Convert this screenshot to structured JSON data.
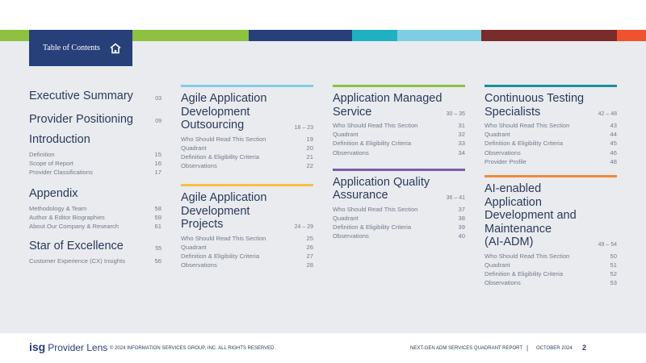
{
  "colors": {
    "stripes": [
      "#8dc13f",
      "#8dc13f",
      "#27407a",
      "#27407a",
      "#1fb0c1",
      "#7fcde4",
      "#7a2b2b",
      "#7a2b2b",
      "#f0522d"
    ],
    "bars": {
      "light_blue": "#7fcde4",
      "yellow": "#f5c046",
      "green": "#8dc13f",
      "purple": "#7b5ea6",
      "teal": "#1a8fa0",
      "orange": "#ef8a3d"
    }
  },
  "toc_tab": {
    "label": "Table of Contents",
    "icon": "home-icon"
  },
  "col1": {
    "sections": [
      {
        "title": "Executive Summary",
        "page": "03",
        "items": []
      },
      {
        "title": "Provider Positioning",
        "page": "09",
        "items": []
      },
      {
        "title": "Introduction",
        "page": "",
        "items": [
          {
            "label": "Definition",
            "page": "15"
          },
          {
            "label": "Scope of Report",
            "page": "16"
          },
          {
            "label": "Provider Classifications",
            "page": "17"
          }
        ]
      },
      {
        "title": "Appendix",
        "page": "",
        "items": [
          {
            "label": "Methodology & Team",
            "page": "58"
          },
          {
            "label": "Author & Editor Biographies",
            "page": "59"
          },
          {
            "label": "About Our Company & Research",
            "page": "61"
          }
        ]
      },
      {
        "title": "Star of Excellence",
        "page": "55",
        "items": [
          {
            "label": "Customer Experience (CX) Insights",
            "page": "56"
          }
        ]
      }
    ]
  },
  "col2": {
    "blocks": [
      {
        "title": "Agile Application Development Outsourcing",
        "title_lines": [
          "Agile Application",
          "Development",
          "Outsourcing"
        ],
        "range": "18 – 23",
        "items": [
          {
            "label": "Who Should Read This Section",
            "page": "19"
          },
          {
            "label": "Quadrant",
            "page": "20"
          },
          {
            "label": "Definition & Eligibility Criteria",
            "page": "21"
          },
          {
            "label": "Observations",
            "page": "22"
          }
        ]
      },
      {
        "title": "Agile Application Development Projects",
        "title_lines": [
          "Agile Application",
          "Development",
          "Projects"
        ],
        "range": "24 – 29",
        "items": [
          {
            "label": "Who Should Read This Section",
            "page": "25"
          },
          {
            "label": "Quadrant",
            "page": "26"
          },
          {
            "label": "Definition & Eligibility Criteria",
            "page": "27"
          },
          {
            "label": "Observations",
            "page": "28"
          }
        ]
      }
    ]
  },
  "col3": {
    "blocks": [
      {
        "title": "Application Managed Service",
        "title_lines": [
          "Application Managed",
          "Service"
        ],
        "range": "30 – 35",
        "items": [
          {
            "label": "Who Should Read This Section",
            "page": "31"
          },
          {
            "label": "Quadrant",
            "page": "32"
          },
          {
            "label": "Definition & Eligibility Criteria",
            "page": "33"
          },
          {
            "label": "Observations",
            "page": "34"
          }
        ]
      },
      {
        "title": "Application Quality Assurance",
        "title_lines": [
          "Application Quality",
          "Assurance"
        ],
        "range": "36 – 41",
        "items": [
          {
            "label": "Who Should Read This Section",
            "page": "37"
          },
          {
            "label": "Quadrant",
            "page": "38"
          },
          {
            "label": "Definition & Eligibility Criteria",
            "page": "39"
          },
          {
            "label": "Observations",
            "page": "40"
          }
        ]
      }
    ]
  },
  "col4": {
    "blocks": [
      {
        "title": "Continuous Testing Specialists",
        "title_lines": [
          "Continuous Testing",
          "Specialists"
        ],
        "range": "42 – 48",
        "items": [
          {
            "label": "Who Should Read This Section",
            "page": "43"
          },
          {
            "label": "Quadrant",
            "page": "44"
          },
          {
            "label": "Definition & Eligibility Criteria",
            "page": "45"
          },
          {
            "label": "Observations",
            "page": "46"
          },
          {
            "label": "Provider Profile",
            "page": "48"
          }
        ]
      },
      {
        "title": "AI-enabled Application Development and Maintenance (AI-ADM)",
        "title_lines": [
          "AI-enabled Application",
          "Development and",
          "Maintenance",
          "(AI-ADM)"
        ],
        "range": "49 – 54",
        "items": [
          {
            "label": "Who Should Read This Section",
            "page": "50"
          },
          {
            "label": "Quadrant",
            "page": "51"
          },
          {
            "label": "Definition & Eligibility Criteria",
            "page": "52"
          },
          {
            "label": "Observations",
            "page": "53"
          }
        ]
      }
    ]
  },
  "footer": {
    "logo_isg": "isg",
    "logo_text": "Provider Lens",
    "copyright": "© 2024 INFORMATION SERVICES GROUP, INC. ALL RIGHTS RESERVED.",
    "report": "NEXT-GEN ADM SERVICES QUADRANT REPORT",
    "separator": "|",
    "date": "OCTOBER 2024",
    "page": "2"
  }
}
